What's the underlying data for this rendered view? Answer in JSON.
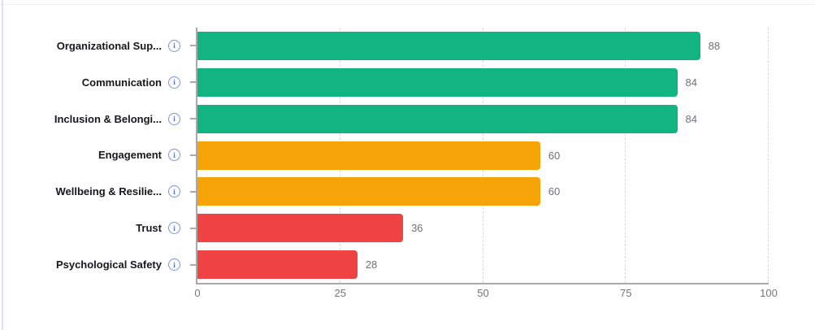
{
  "chart_data": {
    "type": "bar",
    "orientation": "horizontal",
    "title": "",
    "xlabel": "",
    "ylabel": "",
    "categories": [
      "Organizational Sup...",
      "Communication",
      "Inclusion & Belongi...",
      "Engagement",
      "Wellbeing & Resilie...",
      "Trust",
      "Psychological Safety"
    ],
    "values": [
      88,
      84,
      84,
      60,
      60,
      36,
      28
    ],
    "bar_colors": [
      "#12b581",
      "#12b581",
      "#12b581",
      "#f5a306",
      "#f5a306",
      "#f04343",
      "#f04343"
    ],
    "value_labels": [
      "88",
      "84",
      "84",
      "60",
      "60",
      "36",
      "28"
    ],
    "x_ticks": [
      "0",
      "25",
      "50",
      "75",
      "100"
    ],
    "x_tick_values": [
      0,
      25,
      50,
      75,
      100
    ],
    "xlim": [
      0,
      100
    ],
    "grid": "dashed-vertical",
    "legend": "none",
    "value_labels_shown": true
  },
  "info_icon": {
    "glyph": "i",
    "color": "#7b95dc"
  },
  "status_colors": {
    "good": "#12b581",
    "medium": "#f5a306",
    "poor": "#f04343"
  },
  "axis_color": "#a9a9a9"
}
